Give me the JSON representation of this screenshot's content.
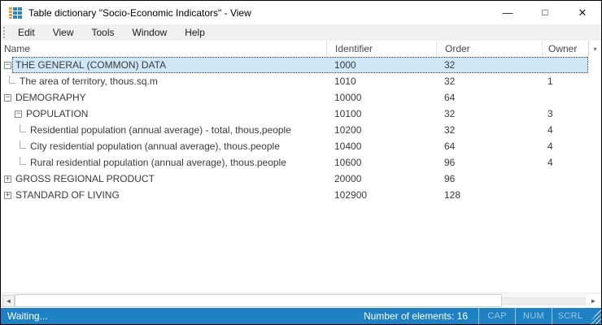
{
  "window": {
    "title": "Table dictionary \"Socio-Economic Indicators\" - View",
    "controls": {
      "minimize": "—",
      "maximize": "□",
      "close": "✕"
    }
  },
  "menu": {
    "items": [
      "Edit",
      "View",
      "Tools",
      "Window",
      "Help"
    ]
  },
  "table": {
    "columns": [
      "Name",
      "Identifier",
      "Order",
      "Owner"
    ],
    "header_dropdown_icon": "▾",
    "rows": [
      {
        "name": "THE GENERAL (COMMON) DATA",
        "identifier": "1000",
        "order": "32",
        "owner": "",
        "glyph": "−",
        "level": 0,
        "selected": true
      },
      {
        "name": "The area of territory, thous.sq.m",
        "identifier": "1010",
        "order": "32",
        "owner": "1",
        "level": 1
      },
      {
        "name": "DEMOGRAPHY",
        "identifier": "10000",
        "order": "64",
        "owner": "",
        "glyph": "−",
        "level": 0
      },
      {
        "name": "POPULATION",
        "identifier": "10100",
        "order": "32",
        "owner": "3",
        "glyph": "−",
        "level": 1
      },
      {
        "name": "Residential population (annual average) - total, thous,people",
        "identifier": "10200",
        "order": "32",
        "owner": "4",
        "level": 2
      },
      {
        "name": "City residential population (annual average), thous.people",
        "identifier": "10400",
        "order": "64",
        "owner": "4",
        "level": 2
      },
      {
        "name": "Rural residential population (annual average), thous.people",
        "identifier": "10600",
        "order": "96",
        "owner": "4",
        "level": 2
      },
      {
        "name": "GROSS REGIONAL PRODUCT",
        "identifier": "20000",
        "order": "96",
        "owner": "",
        "glyph": "+",
        "level": 0
      },
      {
        "name": "STANDARD OF LIVING",
        "identifier": "102900",
        "order": "128",
        "owner": "",
        "glyph": "+",
        "level": 0
      }
    ]
  },
  "scrollbar": {
    "left_arrow": "◄",
    "right_arrow": "►"
  },
  "status_bar": {
    "left": "Waiting...",
    "count": "Number of elements: 16",
    "indicators": [
      "CAP",
      "NUM",
      "SCRL"
    ]
  },
  "colors": {
    "status_bar": "#1e81c4",
    "selected_row": "#cfe8f8",
    "menu_bar": "#f0f0f0",
    "icon_blue": "#2f86cd",
    "icon_orange": "#e7a03c"
  }
}
